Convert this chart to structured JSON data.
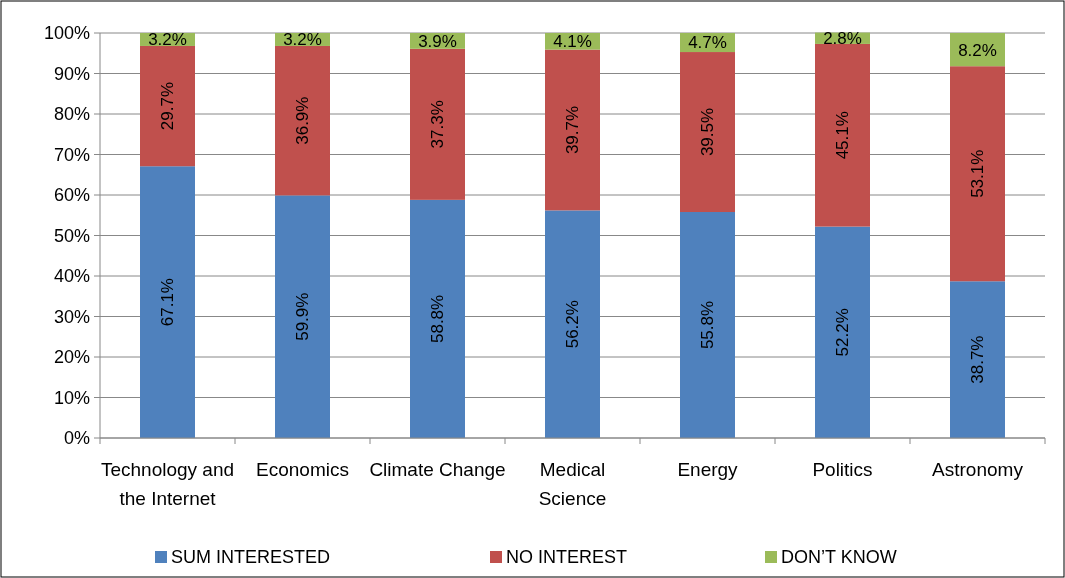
{
  "chart_data": {
    "type": "bar",
    "stacked": true,
    "categories": [
      "Technology and the Internet",
      "Economics",
      "Climate Change",
      "Medical Science",
      "Energy",
      "Politics",
      "Astronomy"
    ],
    "series": [
      {
        "name": "SUM INTERESTED",
        "color": "#4f81bd",
        "values": [
          67.1,
          59.9,
          58.8,
          56.2,
          55.8,
          52.2,
          38.7
        ],
        "value_labels": [
          "67.1%",
          "59.9%",
          "58.8%",
          "56.2%",
          "55.8%",
          "52.2%",
          "38.7%"
        ]
      },
      {
        "name": "NO INTEREST",
        "color": "#c0504d",
        "values": [
          29.7,
          36.9,
          37.3,
          39.7,
          39.5,
          45.1,
          53.1
        ],
        "value_labels": [
          "29.7%",
          "36.9%",
          "37.3%",
          "39.7%",
          "39.5%",
          "45.1%",
          "53.1%"
        ]
      },
      {
        "name": "DON’T KNOW",
        "color": "#9bbb59",
        "values": [
          3.2,
          3.2,
          3.9,
          4.1,
          4.7,
          2.8,
          8.2
        ],
        "value_labels": [
          "3.2%",
          "3.2%",
          "3.9%",
          "4.1%",
          "4.7%",
          "2.8%",
          "8.2%"
        ]
      }
    ],
    "ylim": [
      0,
      100
    ],
    "yticks": [
      {
        "value": 0,
        "label": "0%"
      },
      {
        "value": 10,
        "label": "10%"
      },
      {
        "value": 20,
        "label": "20%"
      },
      {
        "value": 30,
        "label": "30%"
      },
      {
        "value": 40,
        "label": "40%"
      },
      {
        "value": 50,
        "label": "50%"
      },
      {
        "value": 60,
        "label": "60%"
      },
      {
        "value": 70,
        "label": "70%"
      },
      {
        "value": 80,
        "label": "80%"
      },
      {
        "value": 90,
        "label": "90%"
      },
      {
        "value": 100,
        "label": "100%"
      }
    ],
    "grid": "y",
    "legend": "bottom"
  }
}
